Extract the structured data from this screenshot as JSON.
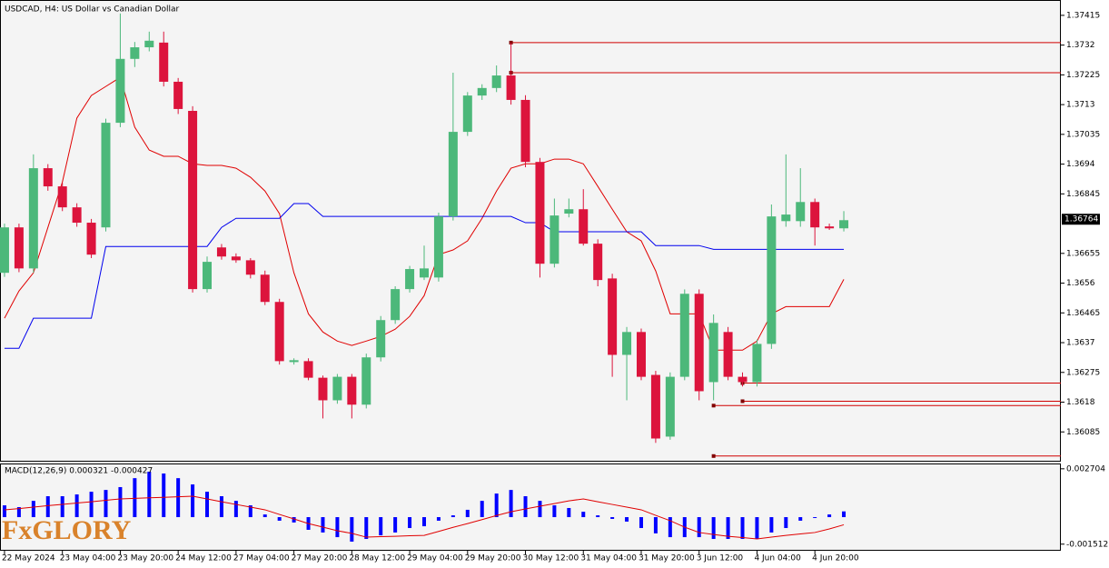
{
  "logo": "FxGLORY",
  "chart_data": [
    {
      "type": "candlestick",
      "title": "USDCAD, H4:  US Dollar vs Canadian Dollar",
      "categories": [
        "22 May 2024",
        null,
        null,
        null,
        "23 May 04:00",
        null,
        null,
        null,
        "23 May 20:00",
        null,
        null,
        null,
        "24 May 12:00",
        null,
        null,
        null,
        "27 May 04:00",
        null,
        null,
        null,
        "27 May 20:00",
        null,
        null,
        null,
        "28 May 12:00",
        null,
        null,
        null,
        "29 May 04:00",
        null,
        null,
        null,
        "29 May 20:00",
        null,
        null,
        null,
        "30 May 12:00",
        null,
        null,
        null,
        "31 May 04:00",
        null,
        null,
        null,
        "31 May 20:00",
        null,
        null,
        null,
        "3 Jun 12:00",
        null,
        null,
        null,
        "4 Jun 04:00",
        null,
        null,
        null,
        "4 Jun 20:00",
        null,
        null
      ],
      "open": [
        1.36593,
        1.36738,
        1.36607,
        1.36927,
        1.36869,
        1.36802,
        1.36753,
        1.36738,
        1.37072,
        1.37276,
        1.37313,
        1.37328,
        1.37203,
        1.3711,
        1.36541,
        1.36674,
        1.36645,
        1.36633,
        1.36587,
        1.365,
        1.36308,
        1.36311,
        1.36258,
        1.36186,
        1.36261,
        1.36172,
        1.36323,
        1.36442,
        1.36541,
        1.36578,
        1.36578,
        1.36773,
        1.37043,
        1.37159,
        1.37183,
        1.37223,
        1.37145,
        1.36947,
        1.36622,
        1.36782,
        1.36796,
        1.36686,
        1.36575,
        1.36331,
        1.36404,
        1.36267,
        1.3607,
        1.36261,
        1.36526,
        1.36244,
        1.36404,
        1.36261,
        1.36244,
        1.36366,
        1.36758,
        1.36758,
        1.36819,
        1.36741,
        1.36735
      ],
      "high": [
        1.3675,
        1.3675,
        1.36971,
        1.3694,
        1.3688,
        1.36815,
        1.36765,
        1.37085,
        1.37421,
        1.3733,
        1.37363,
        1.37363,
        1.37215,
        1.37125,
        1.36645,
        1.36685,
        1.36655,
        1.3664,
        1.366,
        1.3651,
        1.3632,
        1.3632,
        1.36265,
        1.3627,
        1.3627,
        1.36335,
        1.36455,
        1.3655,
        1.36615,
        1.3668,
        1.36785,
        1.37232,
        1.3717,
        1.37195,
        1.37255,
        1.37328,
        1.3716,
        1.3696,
        1.3683,
        1.3683,
        1.3686,
        1.367,
        1.3659,
        1.3642,
        1.36415,
        1.3628,
        1.36275,
        1.3654,
        1.3654,
        1.3646,
        1.3642,
        1.36275,
        1.3638,
        1.36811,
        1.36971,
        1.36927,
        1.3683,
        1.3675,
        1.3679
      ],
      "low": [
        1.3658,
        1.36595,
        1.36593,
        1.36855,
        1.3679,
        1.3674,
        1.3664,
        1.36725,
        1.37058,
        1.3725,
        1.373,
        1.37188,
        1.371,
        1.3653,
        1.3653,
        1.36635,
        1.36625,
        1.36575,
        1.3649,
        1.363,
        1.363,
        1.3625,
        1.36128,
        1.36175,
        1.36128,
        1.3616,
        1.3631,
        1.3643,
        1.3653,
        1.3657,
        1.36565,
        1.3676,
        1.3703,
        1.37145,
        1.3717,
        1.3713,
        1.3693,
        1.36578,
        1.3661,
        1.3677,
        1.3668,
        1.3655,
        1.36261,
        1.36186,
        1.3625,
        1.3605,
        1.3606,
        1.3625,
        1.36186,
        1.36186,
        1.3625,
        1.3623,
        1.3623,
        1.3635,
        1.3674,
        1.3674,
        1.3668,
        1.3673,
        1.36725
      ],
      "close": [
        1.36738,
        1.36607,
        1.36927,
        1.36869,
        1.36802,
        1.36753,
        1.36651,
        1.37072,
        1.37276,
        1.37313,
        1.37334,
        1.37203,
        1.37116,
        1.36541,
        1.36628,
        1.36645,
        1.36633,
        1.36587,
        1.365,
        1.36311,
        1.36314,
        1.36258,
        1.36186,
        1.36261,
        1.36172,
        1.36323,
        1.36442,
        1.36541,
        1.36605,
        1.36607,
        1.36773,
        1.37043,
        1.37159,
        1.37183,
        1.37223,
        1.37145,
        1.36947,
        1.36622,
        1.36776,
        1.36796,
        1.36686,
        1.3657,
        1.36331,
        1.36404,
        1.36261,
        1.36064,
        1.36261,
        1.36526,
        1.36215,
        1.36433,
        1.36261,
        1.36244,
        1.36366,
        1.36773,
        1.36779,
        1.36819,
        1.36738,
        1.36735,
        1.36761
      ],
      "up_color": "#4cb87a",
      "down_color": "#dc143c",
      "lines": [
        {
          "color": "#e00000",
          "values": [
            1.36448,
            1.36535,
            1.36593,
            1.36738,
            1.36883,
            1.37087,
            1.37159,
            1.37188,
            1.37217,
            1.37058,
            1.36985,
            1.36965,
            1.36965,
            1.36941,
            1.36936,
            1.36936,
            1.36927,
            1.36898,
            1.36854,
            1.36782,
            1.36593,
            1.36462,
            1.36404,
            1.36375,
            1.36361,
            1.36375,
            1.3639,
            1.36413,
            1.36454,
            1.3652,
            1.36651,
            1.36666,
            1.36695,
            1.36767,
            1.36854,
            1.36927,
            1.36941,
            1.36941,
            1.36956,
            1.36956,
            1.36941,
            1.36869,
            1.36796,
            1.36724,
            1.36695,
            1.36599,
            1.36462,
            1.36462,
            1.36462,
            1.36346,
            1.36346,
            1.36346,
            1.36375,
            1.36462,
            1.36485,
            1.36485,
            1.36485,
            1.36485,
            1.36572
          ]
        },
        {
          "color": "#0000ee",
          "values": [
            1.36352,
            1.36352,
            1.36448,
            1.36448,
            1.36448,
            1.36448,
            1.36448,
            1.36677,
            1.36677,
            1.36677,
            1.36677,
            1.36677,
            1.36677,
            1.36677,
            1.36677,
            1.36738,
            1.36767,
            1.36767,
            1.36767,
            1.36767,
            1.36814,
            1.36814,
            1.36773,
            1.36773,
            1.36773,
            1.36773,
            1.36773,
            1.36773,
            1.36773,
            1.36773,
            1.36773,
            1.36773,
            1.36773,
            1.36773,
            1.36773,
            1.36773,
            1.36753,
            1.36753,
            1.36724,
            1.36724,
            1.36724,
            1.36724,
            1.36724,
            1.36724,
            1.36724,
            1.3668,
            1.3668,
            1.3668,
            1.3668,
            1.36668,
            1.36668,
            1.36668,
            1.36668,
            1.36668,
            1.36668,
            1.36668,
            1.36668,
            1.36668,
            1.36668
          ]
        }
      ],
      "levels": [
        {
          "value": 1.37328,
          "start": 35
        },
        {
          "value": 1.37232,
          "start": 35
        },
        {
          "value": 1.36241,
          "start": 51
        },
        {
          "value": 1.36183,
          "start": 51
        },
        {
          "value": 1.36169,
          "start": 49
        },
        {
          "value": 1.36008,
          "start": 49
        }
      ],
      "level_color": "#d00000",
      "last_price": 1.36764,
      "ylim": [
        1.3599,
        1.37464
      ],
      "yticks": [
        1.37415,
        1.3732,
        1.37225,
        1.3713,
        1.37035,
        1.3694,
        1.36845,
        1.36655,
        1.3656,
        1.36465,
        1.3637,
        1.36275,
        1.3618,
        1.36085
      ]
    },
    {
      "type": "macd",
      "title": "MACD(12,26,9) 0.000321 -0.000427",
      "values": [
        0.00066,
        0.00056,
        0.00091,
        0.00117,
        0.00117,
        0.00127,
        0.00142,
        0.00152,
        0.00168,
        0.00218,
        0.00254,
        0.00244,
        0.00218,
        0.00183,
        0.00142,
        0.00117,
        0.00091,
        0.00066,
        0.00015,
        -0.0002,
        -0.0003,
        -0.00071,
        -0.00086,
        -0.00112,
        -0.00137,
        -0.00122,
        -0.00102,
        -0.00086,
        -0.00061,
        -0.00051,
        -0.0002,
        0.0001,
        0.00041,
        0.00091,
        0.00132,
        0.00152,
        0.00117,
        0.00091,
        0.00066,
        0.00051,
        0.0003,
        0.0001,
        -0.0001,
        -0.00025,
        -0.00061,
        -0.00091,
        -0.00112,
        -0.00112,
        -0.00112,
        -0.00122,
        -0.00122,
        -0.00122,
        -0.00122,
        -0.00086,
        -0.00061,
        -0.0002,
        -5e-05,
        0.00015,
        0.000321
      ],
      "color": "#0000ff",
      "signal": {
        "color": "#e00000",
        "values": [
          0.00041,
          0.00048,
          0.00056,
          0.00064,
          0.00071,
          0.00079,
          0.00086,
          0.00094,
          0.00102,
          0.00105,
          0.00108,
          0.00111,
          0.00114,
          0.00117,
          0.00102,
          0.00086,
          0.00071,
          0.00056,
          0.00041,
          0.00015,
          -0.0001,
          -0.00036,
          -0.00056,
          -0.00076,
          -0.00091,
          -0.00112,
          -0.00109,
          -0.00107,
          -0.00104,
          -0.00102,
          -0.0008,
          -0.00057,
          -0.00036,
          -0.00014,
          9e-05,
          0.0003,
          0.00046,
          0.00061,
          0.00076,
          0.00091,
          0.00102,
          0.00086,
          0.00071,
          0.00056,
          0.00041,
          0.0001,
          -0.0002,
          -0.00056,
          -0.00086,
          -0.00097,
          -0.00107,
          -0.00114,
          -0.00122,
          -0.00112,
          -0.00102,
          -0.00094,
          -0.00086,
          -0.00066,
          -0.000427
        ]
      },
      "ylim": [
        -0.00188,
        0.00295
      ],
      "yticks": [
        0.002704,
        -0.001512
      ]
    }
  ]
}
